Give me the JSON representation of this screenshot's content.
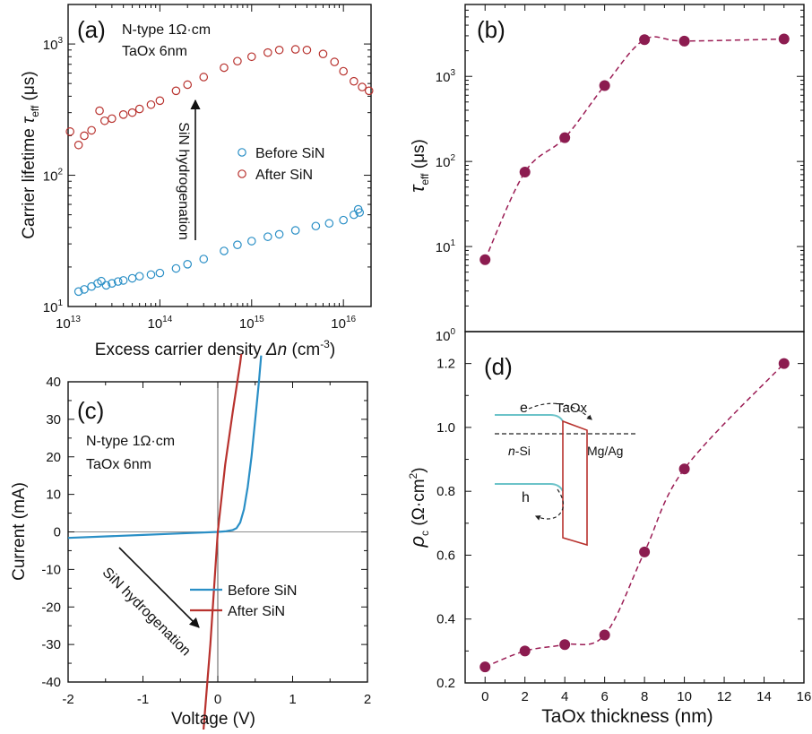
{
  "colors": {
    "before": "#2a8fc6",
    "after": "#b8322e",
    "fit": "#9b1d55",
    "marker": "#8c1c50",
    "band": "#6cc3c9"
  },
  "chart_data": [
    {
      "panel": "(a)",
      "type": "scatter",
      "xscale": "log",
      "yscale": "log",
      "xlim": [
        10000000000000.0,
        2e+16
      ],
      "ylim": [
        10,
        2000
      ],
      "xlabel_main": "Excess carrier density ",
      "xlabel_sym": "Δn",
      "xlabel_unit": " (cm",
      "xlabel_exp": "-3",
      "xlabel_close": ")",
      "ylabel_main": "Carrier lifetime ",
      "ylabel_sym": "τ",
      "ylabel_sub": "eff",
      "ylabel_unit": " (μs)",
      "xticks": [
        {
          "base": "10",
          "exp": "13"
        },
        {
          "base": "10",
          "exp": "14"
        },
        {
          "base": "10",
          "exp": "15"
        },
        {
          "base": "10",
          "exp": "16"
        }
      ],
      "yticks": [
        {
          "base": "10",
          "exp": "1"
        },
        {
          "base": "10",
          "exp": "2"
        },
        {
          "base": "10",
          "exp": "3"
        }
      ],
      "annotation_lines": [
        "N-type 1Ω·cm",
        "TaOx 6nm"
      ],
      "arrow_label": "SiN hydrogenation",
      "legend": [
        "Before SiN",
        "After SiN"
      ],
      "series": [
        {
          "name": "Before SiN",
          "x": [
            13000000000000.0,
            15000000000000.0,
            18000000000000.0,
            21000000000000.0,
            23000000000000.0,
            26000000000000.0,
            30000000000000.0,
            35000000000000.0,
            40000000000000.0,
            50000000000000.0,
            60000000000000.0,
            80000000000000.0,
            100000000000000.0,
            150000000000000.0,
            200000000000000.0,
            300000000000000.0,
            500000000000000.0,
            700000000000000.0,
            1000000000000000.0,
            1500000000000000.0,
            2000000000000000.0,
            3000000000000000.0,
            5000000000000000.0,
            7000000000000000.0,
            1e+16,
            1.3e+16,
            1.45e+16,
            1.5e+16
          ],
          "y": [
            13,
            13.5,
            14.2,
            15,
            15.6,
            14.5,
            15,
            15.5,
            15.8,
            16.4,
            17,
            17.5,
            18,
            19.5,
            21,
            23,
            26.5,
            29.5,
            31.5,
            34,
            35.5,
            38,
            41,
            43,
            45.5,
            50,
            55,
            52
          ]
        },
        {
          "name": "After SiN",
          "x": [
            10500000000000.0,
            13000000000000.0,
            15000000000000.0,
            18000000000000.0,
            22000000000000.0,
            25000000000000.0,
            30000000000000.0,
            40000000000000.0,
            50000000000000.0,
            60000000000000.0,
            80000000000000.0,
            100000000000000.0,
            150000000000000.0,
            200000000000000.0,
            300000000000000.0,
            500000000000000.0,
            700000000000000.0,
            1000000000000000.0,
            1500000000000000.0,
            2000000000000000.0,
            3000000000000000.0,
            4000000000000000.0,
            6000000000000000.0,
            8000000000000000.0,
            1e+16,
            1.3e+16,
            1.6e+16,
            1.9e+16
          ],
          "y": [
            215,
            170,
            200,
            220,
            310,
            260,
            270,
            290,
            300,
            320,
            345,
            370,
            440,
            490,
            560,
            660,
            740,
            800,
            860,
            900,
            910,
            900,
            840,
            730,
            620,
            520,
            470,
            440
          ]
        }
      ]
    },
    {
      "panel": "(b)",
      "type": "line",
      "yscale": "log",
      "xlim": [
        -1,
        16
      ],
      "ylim": [
        1,
        7000
      ],
      "ylabel_sym": "τ",
      "ylabel_sub": "eff",
      "ylabel_unit": " (μs)",
      "yticks": [
        {
          "base": "10",
          "exp": "0"
        },
        {
          "base": "10",
          "exp": "1"
        },
        {
          "base": "10",
          "exp": "2"
        },
        {
          "base": "10",
          "exp": "3"
        }
      ],
      "series": [
        {
          "x": [
            0,
            2,
            4,
            6,
            8,
            10,
            15
          ],
          "y": [
            7,
            75,
            190,
            780,
            2700,
            2600,
            2750
          ]
        }
      ]
    },
    {
      "panel": "(c)",
      "type": "line",
      "xlim": [
        -2,
        2
      ],
      "ylim": [
        -40,
        40
      ],
      "xlabel": "Voltage (V)",
      "ylabel": "Current (mA)",
      "xticks": [
        "-2",
        "-1",
        "0",
        "1",
        "2"
      ],
      "yticks": [
        "-40",
        "-30",
        "-20",
        "-10",
        "0",
        "10",
        "20",
        "30",
        "40"
      ],
      "annotation_lines": [
        "N-type 1Ω·cm",
        "TaOx 6nm"
      ],
      "arrow_label": "SiN hydrogenation",
      "legend": [
        "Before SiN",
        "After SiN"
      ],
      "series": [
        {
          "name": "Before SiN",
          "x": [
            -2,
            -1,
            -0.5,
            0,
            0.1,
            0.2,
            0.25,
            0.3,
            0.35,
            0.4,
            0.45,
            0.5,
            0.55,
            0.58
          ],
          "y": [
            -1.6,
            -0.8,
            -0.4,
            0,
            0.15,
            0.5,
            1,
            2.5,
            6,
            12,
            20,
            30,
            40,
            47
          ]
        },
        {
          "name": "After SiN",
          "x": [
            -0.2,
            -0.1,
            0,
            0.1,
            0.2,
            0.3,
            0.36
          ],
          "y": [
            -55,
            -30,
            0,
            18,
            32,
            45,
            55
          ]
        }
      ]
    },
    {
      "panel": "(d)",
      "type": "line",
      "xlim": [
        -1,
        16
      ],
      "ylim": [
        0.2,
        1.3
      ],
      "xlabel": "TaOx thickness (nm)",
      "ylabel_sym": "ρ",
      "ylabel_sub": "c",
      "ylabel_unit": " (Ω·cm",
      "ylabel_exp": "2",
      "ylabel_close": ")",
      "xticks": [
        "0",
        "2",
        "4",
        "6",
        "8",
        "10",
        "12",
        "14",
        "16"
      ],
      "yticks": [
        "0.2",
        "0.4",
        "0.6",
        "0.8",
        "1.0",
        "1.2"
      ],
      "b_bottom_tick": "10",
      "b_bottom_tick_exp": "0",
      "series": [
        {
          "x": [
            0,
            2,
            4,
            6,
            8,
            10,
            15
          ],
          "y": [
            0.25,
            0.3,
            0.32,
            0.35,
            0.61,
            0.87,
            1.2
          ]
        }
      ],
      "inset": {
        "e": "e",
        "taox": "TaOx",
        "nsi": "n",
        "nsi_rest": "-Si",
        "metal": "Mg/Ag",
        "h": "h"
      }
    }
  ]
}
